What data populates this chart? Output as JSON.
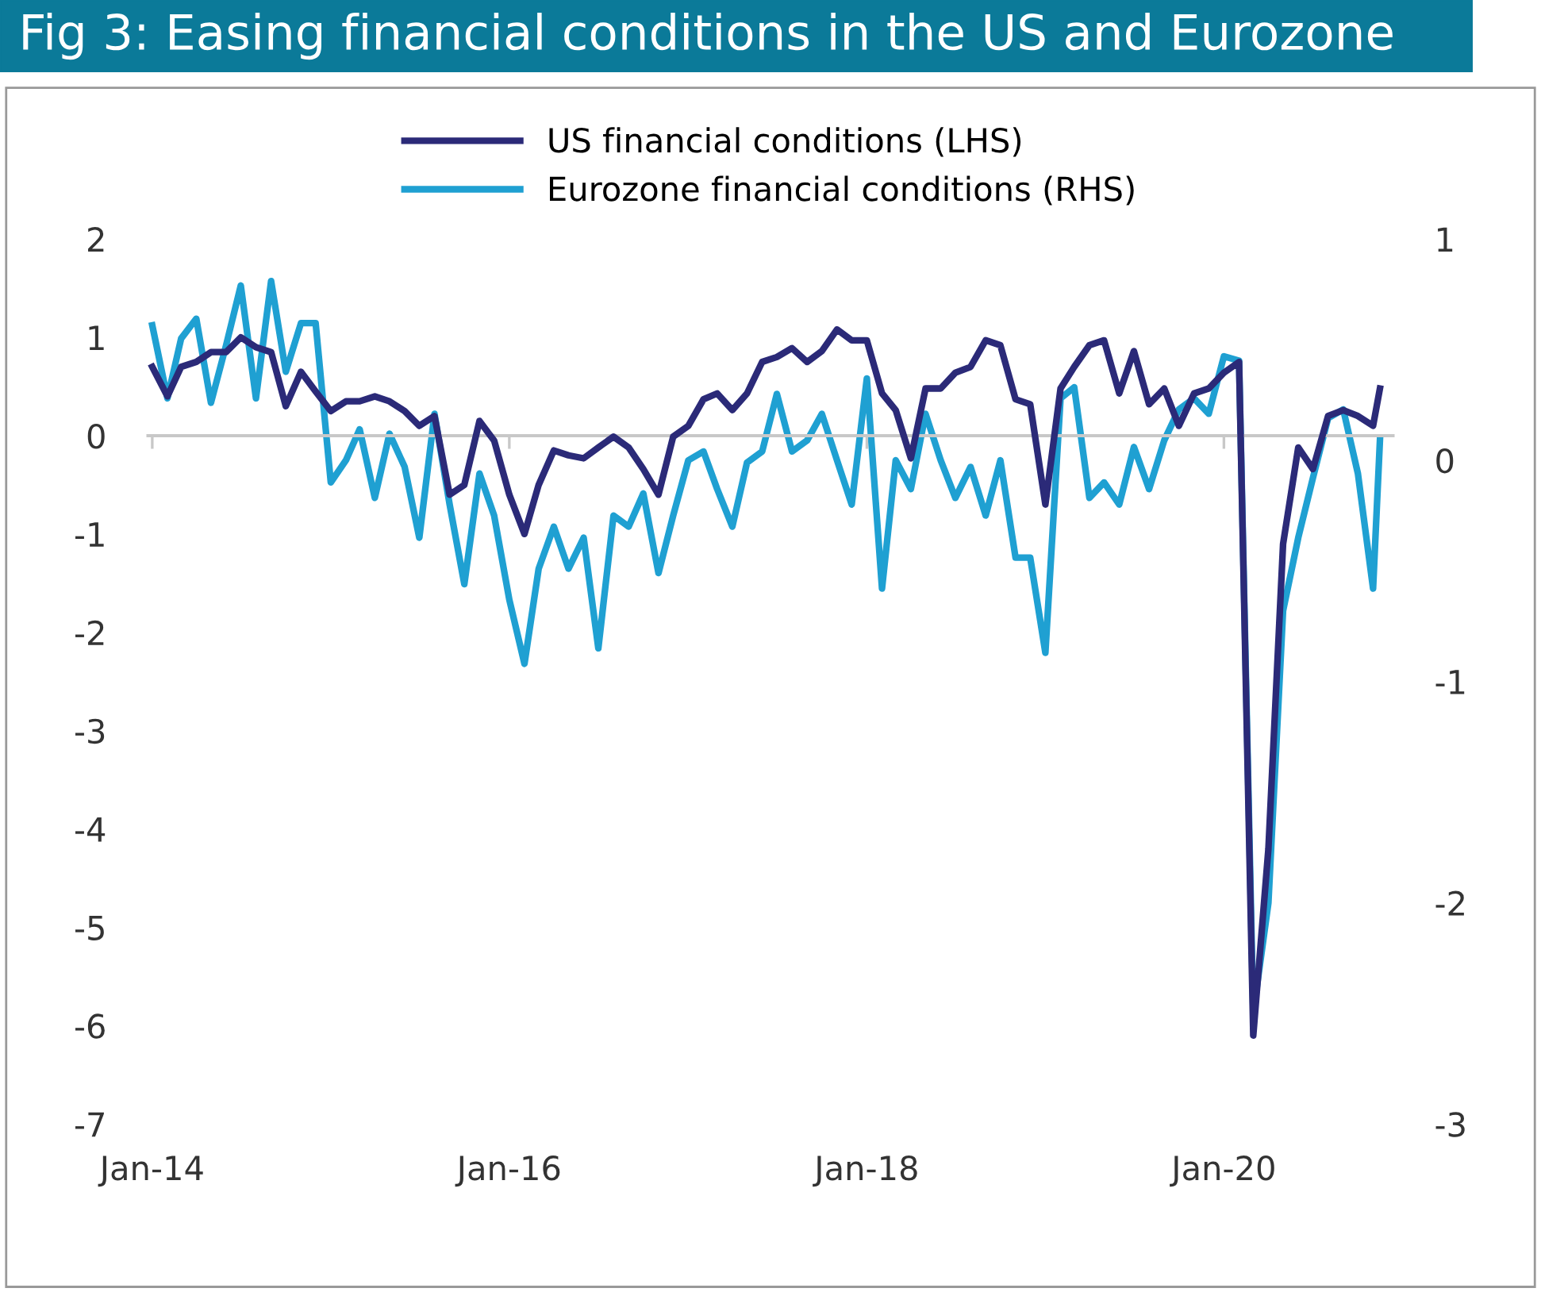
{
  "chart_data": {
    "type": "line",
    "title": "Fig 3: Easing financial conditions in the US and Eurozone",
    "x": [
      "2014-01",
      "2014-02",
      "2014-03",
      "2014-04",
      "2014-05",
      "2014-06",
      "2014-07",
      "2014-08",
      "2014-09",
      "2014-10",
      "2014-11",
      "2014-12",
      "2015-01",
      "2015-02",
      "2015-03",
      "2015-04",
      "2015-05",
      "2015-06",
      "2015-07",
      "2015-08",
      "2015-09",
      "2015-10",
      "2015-11",
      "2015-12",
      "2016-01",
      "2016-02",
      "2016-03",
      "2016-04",
      "2016-05",
      "2016-06",
      "2016-07",
      "2016-08",
      "2016-09",
      "2016-10",
      "2016-11",
      "2016-12",
      "2017-01",
      "2017-02",
      "2017-03",
      "2017-04",
      "2017-05",
      "2017-06",
      "2017-07",
      "2017-08",
      "2017-09",
      "2017-10",
      "2017-11",
      "2017-12",
      "2018-01",
      "2018-02",
      "2018-03",
      "2018-04",
      "2018-05",
      "2018-06",
      "2018-07",
      "2018-08",
      "2018-09",
      "2018-10",
      "2018-11",
      "2018-12",
      "2019-01",
      "2019-02",
      "2019-03",
      "2019-04",
      "2019-05",
      "2019-06",
      "2019-07",
      "2019-08",
      "2019-09",
      "2019-10",
      "2019-11",
      "2019-12",
      "2020-01",
      "2020-02",
      "2020-03",
      "2020-04",
      "2020-05",
      "2020-06",
      "2020-07",
      "2020-08",
      "2020-09",
      "2020-10",
      "2020-11",
      "2020-11-15"
    ],
    "series": [
      {
        "name": "US financial conditions (LHS)",
        "color": "#2b2a78",
        "values": [
          0.7,
          0.4,
          0.7,
          0.75,
          0.85,
          0.85,
          1.0,
          0.9,
          0.85,
          0.3,
          0.65,
          0.45,
          0.25,
          0.35,
          0.35,
          0.4,
          0.35,
          0.25,
          0.1,
          0.2,
          -0.6,
          -0.5,
          0.15,
          -0.05,
          -0.6,
          -1.0,
          -0.5,
          -0.15,
          -0.2,
          -0.23,
          -0.12,
          -0.01,
          -0.12,
          -0.34,
          -0.6,
          -0.01,
          0.1,
          0.37,
          0.43,
          0.26,
          0.43,
          0.75,
          0.8,
          0.89,
          0.75,
          0.86,
          1.08,
          0.97,
          0.97,
          0.43,
          0.26,
          -0.23,
          0.48,
          0.48,
          0.64,
          0.7,
          0.97,
          0.92,
          0.37,
          0.32,
          -0.7,
          0.48,
          0.7,
          0.92,
          0.97,
          0.43,
          0.86,
          0.32,
          0.48,
          0.1,
          0.43,
          0.48,
          0.64,
          0.75,
          -6.1,
          -4.2,
          -1.1,
          -0.12,
          -0.34,
          0.2,
          0.26,
          0.2,
          0.1,
          0.48
        ]
      },
      {
        "name": "Eurozone financial conditions (RHS)",
        "color": "#1fa0d2",
        "axis": "y2",
        "values": [
          0.61,
          0.28,
          0.55,
          0.64,
          0.26,
          0.52,
          0.79,
          0.28,
          0.81,
          0.4,
          0.62,
          0.62,
          -0.1,
          0.0,
          0.14,
          -0.17,
          0.12,
          -0.03,
          -0.35,
          0.21,
          -0.2,
          -0.56,
          -0.06,
          -0.25,
          -0.63,
          -0.92,
          -0.49,
          -0.3,
          -0.49,
          -0.35,
          -0.85,
          -0.25,
          -0.3,
          -0.15,
          -0.51,
          -0.25,
          0.0,
          0.04,
          -0.13,
          -0.3,
          -0.01,
          0.04,
          0.3,
          0.04,
          0.09,
          0.21,
          0.0,
          -0.2,
          0.37,
          -0.58,
          0.0,
          -0.13,
          0.21,
          0.0,
          -0.17,
          -0.03,
          -0.25,
          0.0,
          -0.44,
          -0.44,
          -0.87,
          0.28,
          0.33,
          -0.17,
          -0.1,
          -0.2,
          0.06,
          -0.13,
          0.09,
          0.23,
          0.28,
          0.21,
          0.47,
          0.45,
          -2.5,
          -2.0,
          -0.68,
          -0.35,
          -0.08,
          0.19,
          0.23,
          -0.06,
          -0.58,
          0.09
        ]
      }
    ],
    "xlim": [
      "2013-12-20",
      "2020-12-15"
    ],
    "xticks": [
      {
        "value": "2014-01",
        "label": "Jan-14"
      },
      {
        "value": "2016-01",
        "label": "Jan-16"
      },
      {
        "value": "2018-01",
        "label": "Jan-18"
      },
      {
        "value": "2020-01",
        "label": "Jan-20"
      }
    ],
    "ylim": [
      -7,
      2
    ],
    "yticks": [
      -7,
      -6,
      -5,
      -4,
      -3,
      -2,
      -1,
      0,
      1,
      2
    ],
    "y2lim": [
      -3,
      1
    ],
    "y2ticks": [
      -3,
      -2,
      -1,
      0,
      1
    ],
    "ref_lines": [
      {
        "axis": "y",
        "value": 0,
        "color": "#c8c8c8"
      }
    ],
    "grid": false,
    "legend": "top"
  }
}
